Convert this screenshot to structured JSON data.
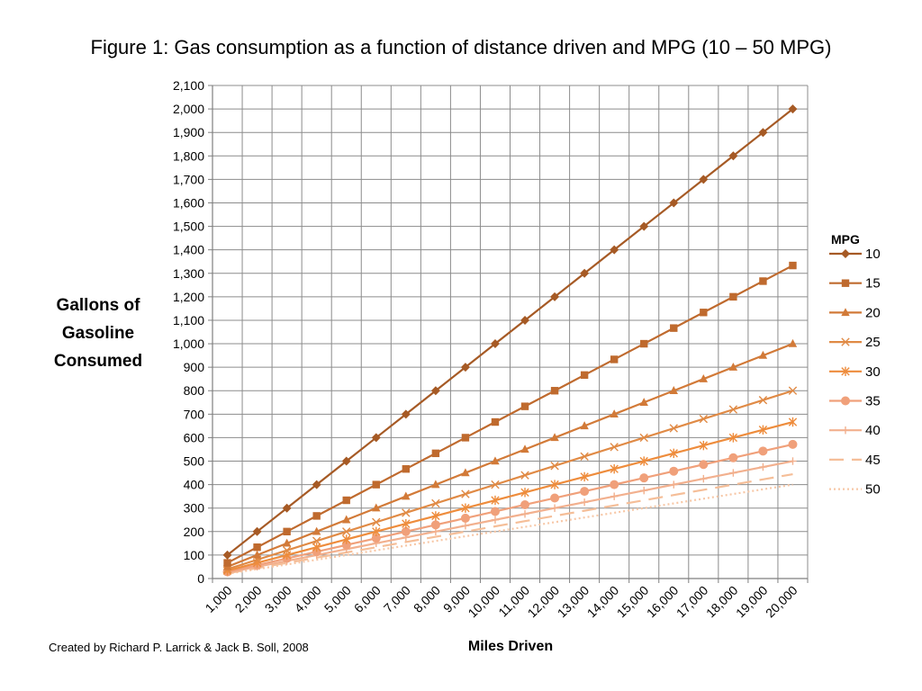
{
  "figure": {
    "title": "Figure 1:  Gas consumption as a function of distance driven and MPG (10 – 50 MPG)",
    "credit": "Created by Richard P. Larrick & Jack B. Soll, 2008"
  },
  "chart_data": {
    "type": "line",
    "title": "Figure 1:  Gas consumption as a function of distance driven and MPG (10 – 50 MPG)",
    "xlabel": "Miles Driven",
    "ylabel": "Gallons of Gasoline Consumed",
    "legend_title": "MPG",
    "legend_position": "right",
    "grid": true,
    "ylim": [
      0,
      2100
    ],
    "y_ticks": [
      0,
      100,
      200,
      300,
      400,
      500,
      600,
      700,
      800,
      900,
      1000,
      1100,
      1200,
      1300,
      1400,
      1500,
      1600,
      1700,
      1800,
      1900,
      2000,
      2100
    ],
    "y_tick_labels": [
      "0",
      "100",
      "200",
      "300",
      "400",
      "500",
      "600",
      "700",
      "800",
      "900",
      "1,000",
      "1,100",
      "1,200",
      "1,300",
      "1,400",
      "1,500",
      "1,600",
      "1,700",
      "1,800",
      "1,900",
      "2,000",
      "2,100"
    ],
    "x": [
      1000,
      2000,
      3000,
      4000,
      5000,
      6000,
      7000,
      8000,
      9000,
      10000,
      11000,
      12000,
      13000,
      14000,
      15000,
      16000,
      17000,
      18000,
      19000,
      20000
    ],
    "x_tick_labels": [
      "1,000",
      "2,000",
      "3,000",
      "4,000",
      "5,000",
      "6,000",
      "7,000",
      "8,000",
      "9,000",
      "10,000",
      "11,000",
      "12,000",
      "13,000",
      "14,000",
      "15,000",
      "16,000",
      "17,000",
      "18,000",
      "19,000",
      "20,000"
    ],
    "series": [
      {
        "name": "10",
        "marker": "diamond",
        "line": "solid",
        "color": "#A65A25",
        "values": [
          100,
          200,
          300,
          400,
          500,
          600,
          700,
          800,
          900,
          1000,
          1100,
          1200,
          1300,
          1400,
          1500,
          1600,
          1700,
          1800,
          1900,
          2000
        ]
      },
      {
        "name": "15",
        "marker": "square",
        "line": "solid",
        "color": "#BF6A2E",
        "values": [
          66.7,
          133.3,
          200,
          266.7,
          333.3,
          400,
          466.7,
          533.3,
          600,
          666.7,
          733.3,
          800,
          866.7,
          933.3,
          1000,
          1066.7,
          1133.3,
          1200,
          1266.7,
          1333.3
        ]
      },
      {
        "name": "20",
        "marker": "triangle",
        "line": "solid",
        "color": "#D27A38",
        "values": [
          50,
          100,
          150,
          200,
          250,
          300,
          350,
          400,
          450,
          500,
          550,
          600,
          650,
          700,
          750,
          800,
          850,
          900,
          950,
          1000
        ]
      },
      {
        "name": "25",
        "marker": "x",
        "line": "solid",
        "color": "#E08A45",
        "values": [
          40,
          80,
          120,
          160,
          200,
          240,
          280,
          320,
          360,
          400,
          440,
          480,
          520,
          560,
          600,
          640,
          680,
          720,
          760,
          800
        ]
      },
      {
        "name": "30",
        "marker": "star",
        "line": "solid",
        "color": "#EE8C3C",
        "values": [
          33.3,
          66.7,
          100,
          133.3,
          166.7,
          200,
          233.3,
          266.7,
          300,
          333.3,
          366.7,
          400,
          433.3,
          466.7,
          500,
          533.3,
          566.7,
          600,
          633.3,
          666.7
        ]
      },
      {
        "name": "35",
        "marker": "circle",
        "line": "solid",
        "color": "#F0A07A",
        "values": [
          28.6,
          57.1,
          85.7,
          114.3,
          142.9,
          171.4,
          200,
          228.6,
          257.1,
          285.7,
          314.3,
          342.9,
          371.4,
          400,
          428.6,
          457.1,
          485.7,
          514.3,
          542.9,
          571.4
        ]
      },
      {
        "name": "40",
        "marker": "plus",
        "line": "solid",
        "color": "#F2B08E",
        "values": [
          25,
          50,
          75,
          100,
          125,
          150,
          175,
          200,
          225,
          250,
          275,
          300,
          325,
          350,
          375,
          400,
          425,
          450,
          475,
          500
        ]
      },
      {
        "name": "45",
        "marker": "none",
        "line": "longdash",
        "color": "#F5BE98",
        "values": [
          22.2,
          44.4,
          66.7,
          88.9,
          111.1,
          133.3,
          155.6,
          177.8,
          200,
          222.2,
          244.4,
          266.7,
          288.9,
          311.1,
          333.3,
          355.6,
          377.8,
          400,
          422.2,
          444.4
        ]
      },
      {
        "name": "50",
        "marker": "none",
        "line": "dot",
        "color": "#F7C7A6",
        "values": [
          20,
          40,
          60,
          80,
          100,
          120,
          140,
          160,
          180,
          200,
          220,
          240,
          260,
          280,
          300,
          320,
          340,
          360,
          380,
          400
        ]
      }
    ]
  }
}
